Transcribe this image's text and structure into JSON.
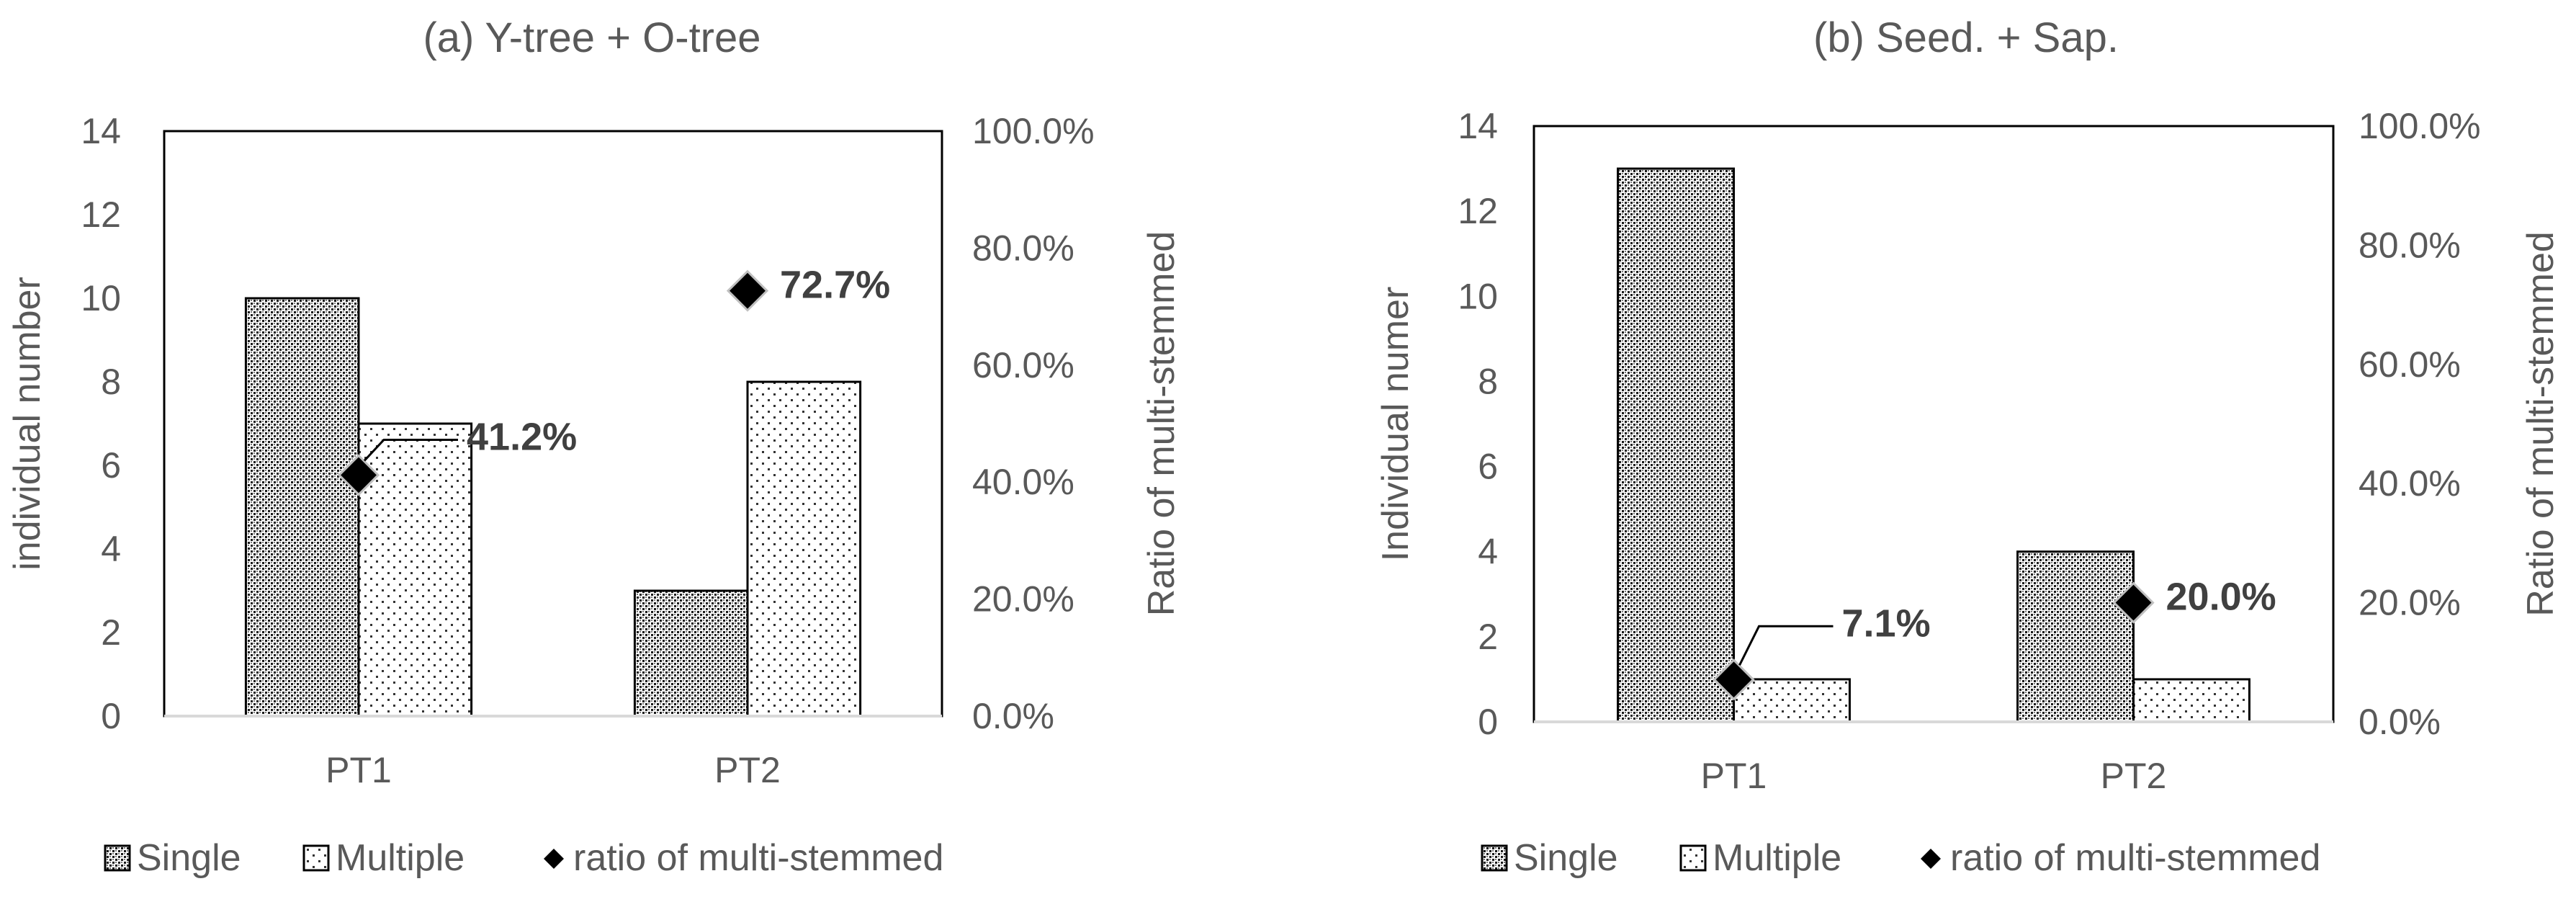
{
  "chart_data": [
    {
      "type": "bar",
      "title": "(a) Y-tree + O-tree",
      "categories": [
        "PT1",
        "PT2"
      ],
      "ylabel": "individual number",
      "y2label": "Ratio of multi-stemmed",
      "ylim": [
        0,
        14
      ],
      "yticks": [
        "0",
        "2",
        "4",
        "6",
        "8",
        "10",
        "12",
        "14"
      ],
      "y2lim": [
        0,
        100
      ],
      "y2ticks": [
        "0.0%",
        "20.0%",
        "40.0%",
        "60.0%",
        "80.0%",
        "100.0%"
      ],
      "grid": false,
      "legend_position": "bottom",
      "series": [
        {
          "name": "Single",
          "values": [
            10,
            3
          ],
          "pattern": "dense-dots",
          "axis": "left"
        },
        {
          "name": "Multiple",
          "values": [
            7,
            8
          ],
          "pattern": "sparse-dots",
          "axis": "left"
        },
        {
          "name": "ratio of multi-stemmed",
          "values": [
            41.2,
            72.7
          ],
          "marker": "diamond",
          "axis": "right",
          "labels": [
            "41.2%",
            "72.7%"
          ]
        }
      ]
    },
    {
      "type": "bar",
      "title": "(b) Seed. + Sap.",
      "categories": [
        "PT1",
        "PT2"
      ],
      "ylabel": "Individual numer",
      "y2label": "Ratio of multi-stemmed",
      "ylim": [
        0,
        14
      ],
      "yticks": [
        "0",
        "2",
        "4",
        "6",
        "8",
        "10",
        "12",
        "14"
      ],
      "y2lim": [
        0,
        100
      ],
      "y2ticks": [
        "0.0%",
        "20.0%",
        "40.0%",
        "60.0%",
        "80.0%",
        "100.0%"
      ],
      "grid": false,
      "legend_position": "bottom",
      "series": [
        {
          "name": "Single",
          "values": [
            13,
            4
          ],
          "pattern": "dense-dots",
          "axis": "left"
        },
        {
          "name": "Multiple",
          "values": [
            1,
            1
          ],
          "pattern": "sparse-dots",
          "axis": "left"
        },
        {
          "name": "ratio of multi-stemmed",
          "values": [
            7.1,
            20.0
          ],
          "marker": "diamond",
          "axis": "right",
          "labels": [
            "7.1%",
            "20.0%"
          ]
        }
      ]
    }
  ],
  "colors": {
    "text": "#595959",
    "bar_outline": "#000000",
    "marker_fill": "#000000",
    "marker_stroke": "#bfbfbf",
    "plot_border": "#000000",
    "baseline": "#d9d9d9"
  }
}
